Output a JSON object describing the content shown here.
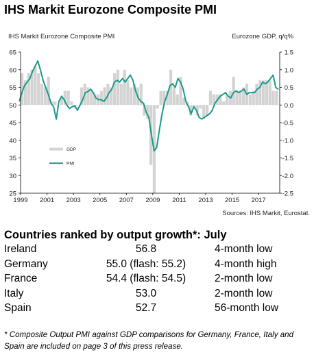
{
  "title": "IHS Markit Eurozone Composite PMI",
  "chart_data": {
    "type": "bar+line",
    "left_axis_label": "IHS Markit Eurozone Composite PMI",
    "right_axis_label": "Eurozone GDP, q/q%",
    "source": "Sources: IHS Markit, Eurostat.",
    "left_ylim": [
      25,
      65
    ],
    "right_ylim": [
      -2.5,
      1.5
    ],
    "left_ticks": [
      "65",
      "60",
      "55",
      "50",
      "45",
      "40",
      "35",
      "30",
      "25"
    ],
    "right_ticks": [
      "1.5",
      "1.0",
      "0.5",
      "0.0",
      "-0.5",
      "-1.0",
      "-1.5",
      "-2.0",
      "-2.5"
    ],
    "x_ticks": [
      "1999",
      "2001",
      "2003",
      "2005",
      "2007",
      "2009",
      "2011",
      "2013",
      "2015",
      "2017"
    ],
    "xlim": [
      1999.0,
      2018.6
    ],
    "grid": false,
    "legend": {
      "position": "lower-left",
      "entries": [
        "GDP",
        "PMI"
      ]
    },
    "colors": {
      "gdp": "#d3d3d3",
      "pmi": "#1a9a8a",
      "axis": "#000000",
      "text": "#222222"
    },
    "series": [
      {
        "name": "GDP",
        "axis": "right",
        "type": "bar",
        "x": [
          1999.0,
          1999.25,
          1999.5,
          1999.75,
          2000.0,
          2000.25,
          2000.5,
          2000.75,
          2001.0,
          2001.25,
          2001.5,
          2001.75,
          2002.0,
          2002.25,
          2002.5,
          2002.75,
          2003.0,
          2003.25,
          2003.5,
          2003.75,
          2004.0,
          2004.25,
          2004.5,
          2004.75,
          2005.0,
          2005.25,
          2005.5,
          2005.75,
          2006.0,
          2006.25,
          2006.5,
          2006.75,
          2007.0,
          2007.25,
          2007.5,
          2007.75,
          2008.0,
          2008.25,
          2008.5,
          2008.75,
          2009.0,
          2009.25,
          2009.5,
          2009.75,
          2010.0,
          2010.25,
          2010.5,
          2010.75,
          2011.0,
          2011.25,
          2011.5,
          2011.75,
          2012.0,
          2012.25,
          2012.5,
          2012.75,
          2013.0,
          2013.25,
          2013.5,
          2013.75,
          2014.0,
          2014.25,
          2014.5,
          2014.75,
          2015.0,
          2015.25,
          2015.5,
          2015.75,
          2016.0,
          2016.25,
          2016.5,
          2016.75,
          2017.0,
          2017.25,
          2017.5,
          2017.75,
          2018.0,
          2018.25
        ],
        "values": [
          0.9,
          0.7,
          0.9,
          1.0,
          1.1,
          0.9,
          0.6,
          0.5,
          0.8,
          0.1,
          0.1,
          0.0,
          0.2,
          0.4,
          0.4,
          0.1,
          -0.1,
          0.0,
          0.5,
          0.6,
          0.5,
          0.4,
          0.3,
          0.3,
          0.4,
          0.5,
          0.6,
          0.5,
          0.9,
          1.0,
          0.6,
          1.0,
          0.7,
          0.5,
          0.6,
          0.5,
          0.6,
          -0.3,
          -0.4,
          -1.7,
          -2.5,
          -0.1,
          0.4,
          0.4,
          0.4,
          1.0,
          0.5,
          0.3,
          0.8,
          0.2,
          0.1,
          -0.3,
          -0.1,
          -0.3,
          -0.1,
          -0.4,
          -0.3,
          0.4,
          0.3,
          0.3,
          0.3,
          0.1,
          0.3,
          0.4,
          0.8,
          0.4,
          0.4,
          0.5,
          0.6,
          0.3,
          0.4,
          0.6,
          0.7,
          0.7,
          0.7,
          0.7,
          0.4,
          0.4
        ]
      },
      {
        "name": "PMI",
        "axis": "left",
        "type": "line",
        "x": [
          1998.9,
          1999.1,
          1999.3,
          1999.5,
          1999.7,
          1999.9,
          2000.1,
          2000.3,
          2000.5,
          2000.7,
          2000.9,
          2001.1,
          2001.3,
          2001.5,
          2001.7,
          2001.9,
          2002.1,
          2002.3,
          2002.5,
          2002.7,
          2002.9,
          2003.1,
          2003.3,
          2003.5,
          2003.7,
          2003.9,
          2004.1,
          2004.3,
          2004.5,
          2004.7,
          2004.9,
          2005.1,
          2005.3,
          2005.5,
          2005.7,
          2005.9,
          2006.1,
          2006.3,
          2006.5,
          2006.7,
          2006.9,
          2007.1,
          2007.3,
          2007.5,
          2007.7,
          2007.9,
          2008.1,
          2008.3,
          2008.5,
          2008.7,
          2008.9,
          2009.1,
          2009.3,
          2009.5,
          2009.7,
          2009.9,
          2010.1,
          2010.3,
          2010.5,
          2010.7,
          2010.9,
          2011.1,
          2011.3,
          2011.5,
          2011.7,
          2011.9,
          2012.1,
          2012.3,
          2012.5,
          2012.7,
          2012.9,
          2013.1,
          2013.3,
          2013.5,
          2013.7,
          2013.9,
          2014.1,
          2014.3,
          2014.5,
          2014.7,
          2014.9,
          2015.1,
          2015.3,
          2015.5,
          2015.7,
          2015.9,
          2016.1,
          2016.3,
          2016.5,
          2016.7,
          2016.9,
          2017.1,
          2017.3,
          2017.5,
          2017.7,
          2017.9,
          2018.1,
          2018.3,
          2018.5
        ],
        "values": [
          51.0,
          53.5,
          55.5,
          56.5,
          57.5,
          59.5,
          61.0,
          62.5,
          60.0,
          57.0,
          55.0,
          53.0,
          50.5,
          49.5,
          46.0,
          51.0,
          52.5,
          51.5,
          50.0,
          49.0,
          49.5,
          49.8,
          48.5,
          50.0,
          51.5,
          53.5,
          53.8,
          54.5,
          53.5,
          52.0,
          51.5,
          51.5,
          51.0,
          52.0,
          53.5,
          54.5,
          56.5,
          57.0,
          56.5,
          57.5,
          56.5,
          57.5,
          58.5,
          57.0,
          54.0,
          52.0,
          51.0,
          50.5,
          48.0,
          46.5,
          41.5,
          37.0,
          38.0,
          43.0,
          47.5,
          51.0,
          53.0,
          55.5,
          56.0,
          55.0,
          57.5,
          56.5,
          54.5,
          51.0,
          49.5,
          47.5,
          49.5,
          48.5,
          46.5,
          46.0,
          46.5,
          47.0,
          47.5,
          48.5,
          50.5,
          51.5,
          52.5,
          53.0,
          53.5,
          52.5,
          52.0,
          53.5,
          54.0,
          53.5,
          54.0,
          54.5,
          53.0,
          53.5,
          53.5,
          53.5,
          54.5,
          55.0,
          56.5,
          56.0,
          56.5,
          57.5,
          58.5,
          55.0,
          54.4
        ]
      }
    ]
  },
  "ranking": {
    "heading": "Countries ranked by output growth*: July",
    "rows": [
      {
        "country": "Ireland",
        "value": "56.8",
        "change": "4-month low"
      },
      {
        "country": "Germany",
        "value": "55.0 (flash: 55.2)",
        "change": "4-month high"
      },
      {
        "country": "France",
        "value": "54.4 (flash: 54.5)",
        "change": "2-month low"
      },
      {
        "country": "Italy",
        "value": "53.0",
        "change": "2-month low"
      },
      {
        "country": "Spain",
        "value": "52.7",
        "change": "56-month low"
      }
    ]
  },
  "footnote": "* Composite Output PMI against GDP comparisons for Germany, France, Italy and Spain are included on page 3 of this press release."
}
